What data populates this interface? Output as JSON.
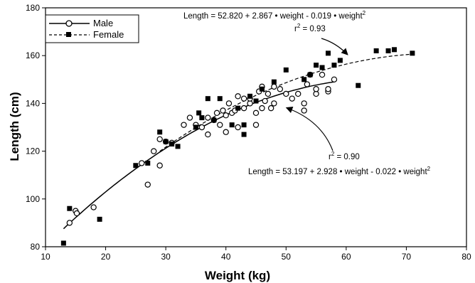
{
  "chart_data": {
    "type": "scatter",
    "xlabel": "Weight (kg)",
    "ylabel": "Length (cm)",
    "xlim": [
      10,
      80
    ],
    "ylim": [
      80,
      180
    ],
    "x_ticks": [
      10,
      20,
      30,
      40,
      50,
      60,
      70,
      80
    ],
    "y_ticks": [
      80,
      100,
      120,
      140,
      160,
      180
    ],
    "grid": false,
    "legend_position": "top-left",
    "series": [
      {
        "name": "Male",
        "marker": "open-circle",
        "line_style": "solid",
        "points": [
          [
            14,
            90
          ],
          [
            15,
            95
          ],
          [
            15.2,
            94
          ],
          [
            18,
            96.5
          ],
          [
            26,
            115
          ],
          [
            27,
            106
          ],
          [
            28,
            120
          ],
          [
            29,
            114
          ],
          [
            29,
            125
          ],
          [
            30,
            124
          ],
          [
            31,
            123.5
          ],
          [
            33,
            131
          ],
          [
            34,
            134
          ],
          [
            35,
            131
          ],
          [
            36,
            130
          ],
          [
            37,
            127
          ],
          [
            37,
            134
          ],
          [
            38,
            133
          ],
          [
            38.5,
            136
          ],
          [
            39,
            131
          ],
          [
            39.5,
            137
          ],
          [
            40,
            128
          ],
          [
            40,
            135
          ],
          [
            40.5,
            140
          ],
          [
            41,
            136
          ],
          [
            41.5,
            137
          ],
          [
            42,
            130
          ],
          [
            42,
            143
          ],
          [
            43,
            138
          ],
          [
            43,
            142
          ],
          [
            44,
            140
          ],
          [
            44,
            142
          ],
          [
            45,
            131
          ],
          [
            45,
            136
          ],
          [
            45.5,
            145
          ],
          [
            46,
            147
          ],
          [
            46,
            138
          ],
          [
            46.5,
            141
          ],
          [
            47,
            144
          ],
          [
            47.5,
            138
          ],
          [
            48,
            140
          ],
          [
            48,
            147
          ],
          [
            49,
            146
          ],
          [
            50,
            144
          ],
          [
            51,
            142
          ],
          [
            52,
            144
          ],
          [
            53,
            137
          ],
          [
            53,
            140
          ],
          [
            53.5,
            148
          ],
          [
            54,
            152
          ],
          [
            55,
            144
          ],
          [
            55,
            146
          ],
          [
            56,
            152
          ],
          [
            57,
            145
          ],
          [
            57,
            146
          ],
          [
            58,
            150
          ]
        ],
        "fit": {
          "intercept": 53.197,
          "b1": 2.928,
          "b2": -0.022,
          "x_range": [
            13,
            58
          ]
        }
      },
      {
        "name": "Female",
        "marker": "filled-square",
        "line_style": "dashed",
        "points": [
          [
            13,
            81.5
          ],
          [
            14,
            96
          ],
          [
            19,
            91.5
          ],
          [
            25,
            114
          ],
          [
            27,
            115
          ],
          [
            29,
            128
          ],
          [
            30,
            124
          ],
          [
            31,
            123
          ],
          [
            32,
            122
          ],
          [
            35,
            130
          ],
          [
            35.5,
            136
          ],
          [
            36,
            134
          ],
          [
            37,
            142
          ],
          [
            38,
            133
          ],
          [
            39,
            142
          ],
          [
            41,
            131
          ],
          [
            42,
            138
          ],
          [
            43,
            131
          ],
          [
            43,
            127
          ],
          [
            44,
            143
          ],
          [
            45,
            141
          ],
          [
            46,
            146
          ],
          [
            48,
            149
          ],
          [
            50,
            154
          ],
          [
            53,
            150
          ],
          [
            54,
            152
          ],
          [
            55,
            156
          ],
          [
            56,
            155
          ],
          [
            57,
            161
          ],
          [
            58,
            156
          ],
          [
            59,
            158
          ],
          [
            62,
            147.5
          ],
          [
            65,
            162
          ],
          [
            67,
            162
          ],
          [
            68,
            162.5
          ],
          [
            71,
            161
          ]
        ],
        "fit": {
          "intercept": 52.82,
          "b1": 2.867,
          "b2": -0.019,
          "x_range": [
            29,
            71
          ]
        }
      }
    ],
    "annotations": {
      "female_eq_main": "Length = 52.820 + 2.867 • weight - 0.019 • weight",
      "female_eq_exp": "2",
      "female_r2_label": "r",
      "female_r2_exp": "2",
      "female_r2_value": " = 0.93",
      "male_r2_label": "r",
      "male_r2_exp": "2",
      "male_r2_value": " = 0.90",
      "male_eq_main": "Length = 53.197 + 2.928 • weight - 0.022 • weight",
      "male_eq_exp": "2"
    },
    "legend": {
      "male_label": "Male",
      "female_label": "Female"
    }
  }
}
